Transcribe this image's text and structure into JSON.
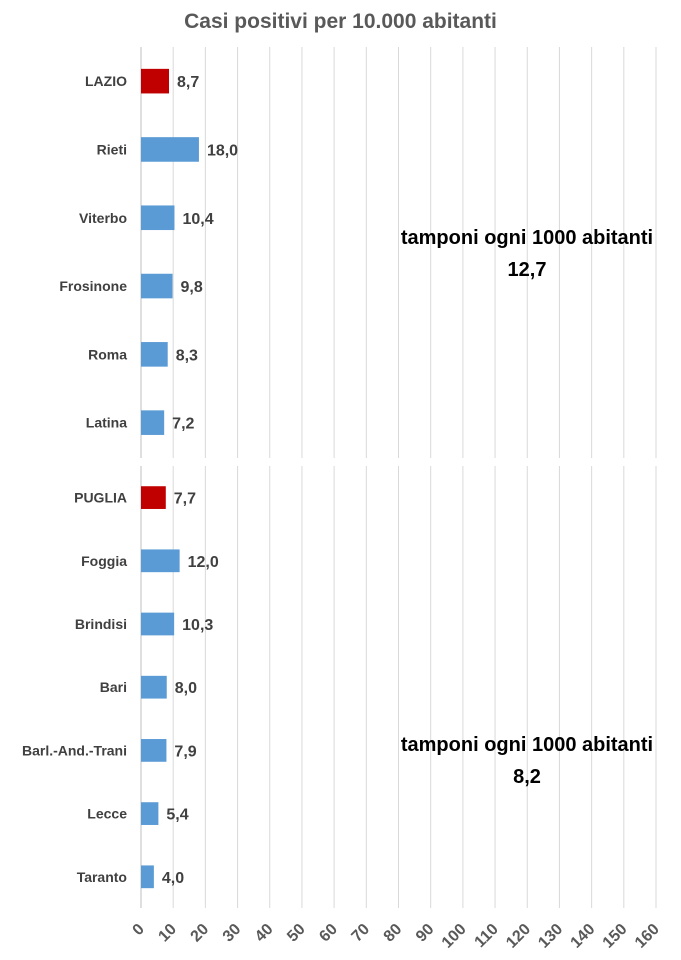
{
  "colors": {
    "bar": "#5b9bd5",
    "highlight": "#c00000",
    "grid": "#d9d9d9"
  },
  "chart_data": [
    {
      "type": "bar",
      "orientation": "horizontal",
      "title": "Casi positivi per 10.000 abitanti",
      "categories": [
        "LAZIO",
        "Rieti",
        "Viterbo",
        "Frosinone",
        "Roma",
        "Latina"
      ],
      "values": [
        8.7,
        18.0,
        10.4,
        9.8,
        8.3,
        7.2
      ],
      "data_labels": [
        "8,7",
        "18,0",
        "10,4",
        "9,8",
        "8,3",
        "7,2"
      ],
      "highlight": [
        "LAZIO"
      ],
      "note": {
        "text": "tamponi ogni 1000 abitanti",
        "value": "12,7"
      },
      "xlim": [
        0,
        160
      ],
      "grid": true
    },
    {
      "type": "bar",
      "orientation": "horizontal",
      "categories": [
        "PUGLIA",
        "Foggia",
        "Brindisi",
        "Bari",
        "Barl.-And.-Trani",
        "Lecce",
        "Taranto"
      ],
      "values": [
        7.7,
        12.0,
        10.3,
        8.0,
        7.9,
        5.4,
        4.0
      ],
      "data_labels": [
        "7,7",
        "12,0",
        "10,3",
        "8,0",
        "7,9",
        "5,4",
        "4,0"
      ],
      "highlight": [
        "PUGLIA"
      ],
      "note": {
        "text": "tamponi ogni 1000 abitanti",
        "value": "8,2"
      },
      "xlim": [
        0,
        160
      ],
      "xticks": [
        "0",
        "10",
        "20",
        "30",
        "40",
        "50",
        "60",
        "70",
        "80",
        "90",
        "100",
        "110",
        "120",
        "130",
        "140",
        "150",
        "160"
      ],
      "grid": true
    }
  ]
}
